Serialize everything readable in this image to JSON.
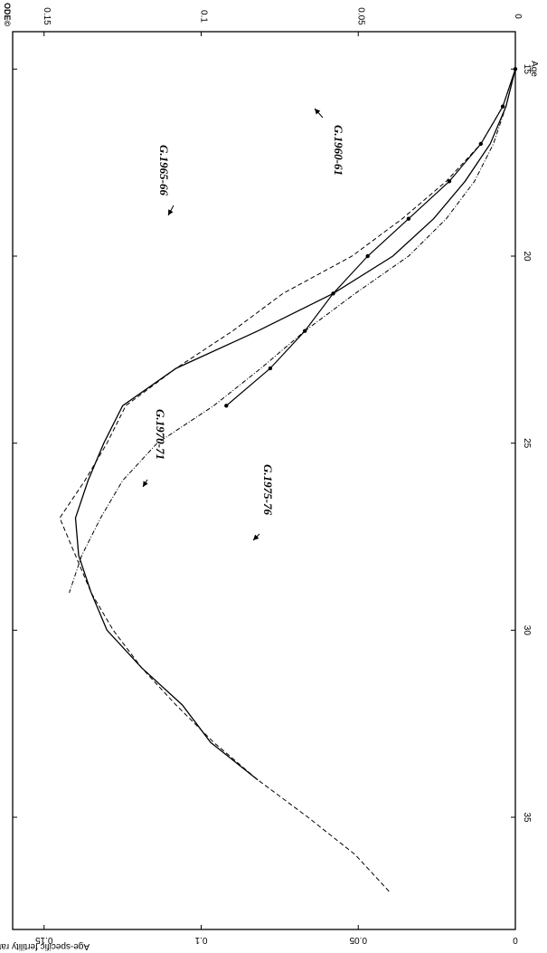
{
  "copyright_text": "ODE©",
  "chart_data": {
    "type": "line",
    "orientation": "rotated-90-clockwise",
    "xlabel": "Age",
    "ylabel": "Age-specific fertility rate",
    "xlim": [
      14,
      38
    ],
    "ylim": [
      0,
      0.16
    ],
    "x_ticks": [
      15,
      20,
      25,
      30,
      35
    ],
    "y_ticks": [
      0,
      0.05,
      0.1,
      0.15
    ],
    "y_tick_labels": [
      "0",
      "0.05",
      "0.1",
      "0.15"
    ],
    "grid": false,
    "legend": "none",
    "series": [
      {
        "name": "G.1960-61",
        "style": "dashed",
        "x": [
          15,
          16,
          17,
          18,
          19,
          20,
          21,
          22,
          23,
          24,
          25,
          26,
          27,
          28,
          29,
          30,
          31,
          32,
          33,
          34,
          35,
          36,
          37
        ],
        "y": [
          0.0,
          0.004,
          0.011,
          0.022,
          0.036,
          0.052,
          0.074,
          0.09,
          0.108,
          0.124,
          0.13,
          0.137,
          0.145,
          0.14,
          0.135,
          0.128,
          0.119,
          0.108,
          0.096,
          0.082,
          0.066,
          0.051,
          0.04
        ],
        "label": "G.1960-61"
      },
      {
        "name": "G.1965-66",
        "style": "solid",
        "x": [
          15,
          16,
          17,
          18,
          19,
          20,
          21,
          22,
          23,
          24,
          25,
          26,
          27,
          28,
          29,
          30,
          31,
          32,
          33,
          34
        ],
        "y": [
          0.0,
          0.003,
          0.008,
          0.016,
          0.026,
          0.039,
          0.058,
          0.082,
          0.108,
          0.125,
          0.131,
          0.136,
          0.14,
          0.139,
          0.135,
          0.13,
          0.119,
          0.106,
          0.097,
          0.082
        ],
        "label": "G.1965-66"
      },
      {
        "name": "G.1970-71",
        "style": "dash-dot",
        "x": [
          15,
          16,
          17,
          18,
          19,
          20,
          21,
          22,
          23,
          24,
          25,
          26,
          27,
          28,
          29
        ],
        "y": [
          0.0,
          0.003,
          0.007,
          0.013,
          0.022,
          0.034,
          0.051,
          0.067,
          0.081,
          0.096,
          0.114,
          0.125,
          0.132,
          0.138,
          0.142
        ],
        "label": "G.1970-71"
      },
      {
        "name": "G.1975-76",
        "style": "solid-markers",
        "x": [
          15,
          16,
          17,
          18,
          19,
          20,
          21,
          22,
          23,
          24
        ],
        "y": [
          0.0,
          0.004,
          0.011,
          0.021,
          0.034,
          0.047,
          0.058,
          0.067,
          0.078,
          0.092
        ],
        "label": "G.1975-76"
      }
    ]
  }
}
